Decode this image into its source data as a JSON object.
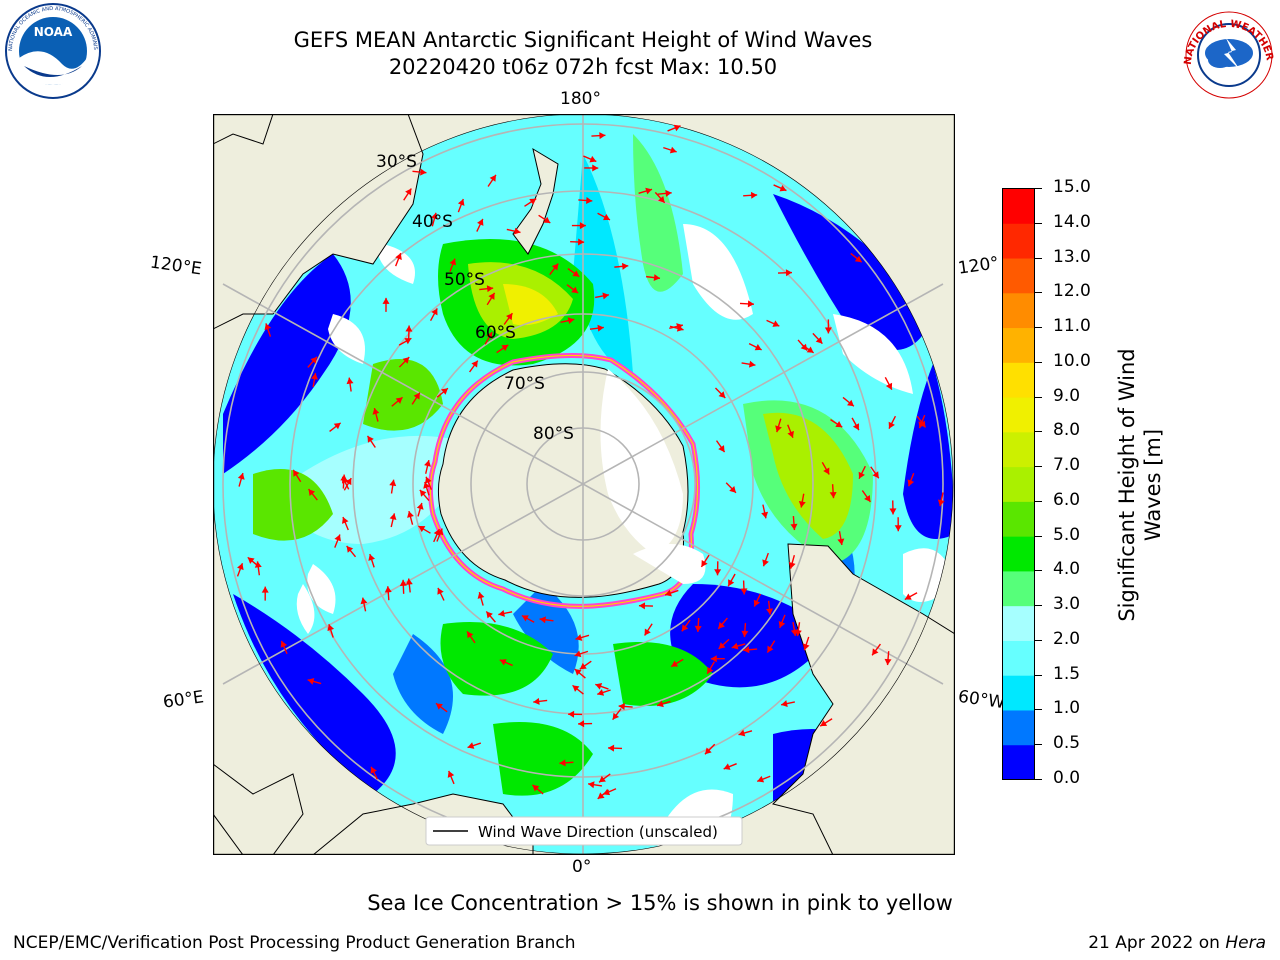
{
  "title": {
    "line1": "GEFS MEAN Antarctic Significant Height of Wind Waves",
    "line2": "20220420 t06z 072h fcst   Max: 10.50"
  },
  "logos": {
    "noaa": "NOAA",
    "noaa_ring": "NATIONAL OCEANIC AND ATMOSPHERIC ADMINISTRATION · U.S. DEPARTMENT OF COMMERCE",
    "nws_ring": "NATIONAL WEATHER SERVICE"
  },
  "map": {
    "projection": "south polar stereographic",
    "longitude_labels": {
      "top": "180°",
      "bottom": "0°",
      "upper_left": "120°E",
      "upper_right": "120°",
      "lower_left": "60°E",
      "lower_right": "60°W"
    },
    "latitude_labels": [
      "30°S",
      "40°S",
      "50°S",
      "60°S",
      "70°S",
      "80°S"
    ],
    "legend": "Wind Wave Direction (unscaled)",
    "arrow_color": "#ff0000",
    "sea_ice_color": "#ff44cc",
    "land_color": "#eeeedd"
  },
  "colorbar": {
    "label": "Significant Height of Wind Waves [m]",
    "ticks": [
      "0.0",
      "0.5",
      "1.0",
      "1.5",
      "2.0",
      "3.0",
      "4.0",
      "5.0",
      "6.0",
      "7.0",
      "8.0",
      "9.0",
      "10.0",
      "11.0",
      "12.0",
      "13.0",
      "14.0",
      "15.0"
    ],
    "colors": [
      "#0000ff",
      "#0078ff",
      "#00e8ff",
      "#66ffff",
      "#a6ffff",
      "#56ff7a",
      "#00e800",
      "#5ae600",
      "#aaf000",
      "#ccf000",
      "#f0f000",
      "#ffe000",
      "#ffb200",
      "#ff8c00",
      "#ff5a00",
      "#ff2800",
      "#ff0000"
    ]
  },
  "note": "Sea Ice Concentration > 15% is shown in pink to yellow",
  "footer": {
    "left": "NCEP/EMC/Verification Post Processing Product Generation Branch",
    "right_date": "21 Apr 2022 on ",
    "right_machine": "Hera"
  }
}
